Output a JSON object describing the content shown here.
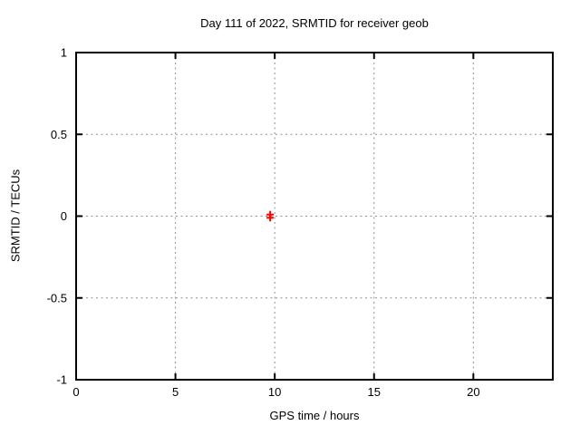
{
  "chart_data": {
    "type": "scatter",
    "title": "Day 111 of 2022, SRMTID for receiver geob",
    "xlabel": "GPS time / hours",
    "ylabel": "SRMTID / TECUs",
    "xlim": [
      0,
      24
    ],
    "ylim": [
      -1,
      1
    ],
    "xticks": [
      0,
      5,
      10,
      15,
      20
    ],
    "xtick_labels": [
      "0",
      "5",
      "10",
      "15",
      "20"
    ],
    "yticks": [
      -1,
      -0.5,
      0,
      0.5,
      1
    ],
    "ytick_labels": [
      "-1",
      "-0.5",
      "0",
      "0.5",
      "1"
    ],
    "grid": true,
    "legend": "none",
    "colors": {
      "border": "#000000",
      "grid": "#909090",
      "marker": "#ff0000",
      "background": "#ffffff"
    },
    "series": [
      {
        "name": "SRMTID",
        "marker": "plus",
        "color": "#ff0000",
        "points": [
          [
            9.77,
            0.01
          ],
          [
            9.77,
            -0.01
          ]
        ]
      }
    ]
  }
}
